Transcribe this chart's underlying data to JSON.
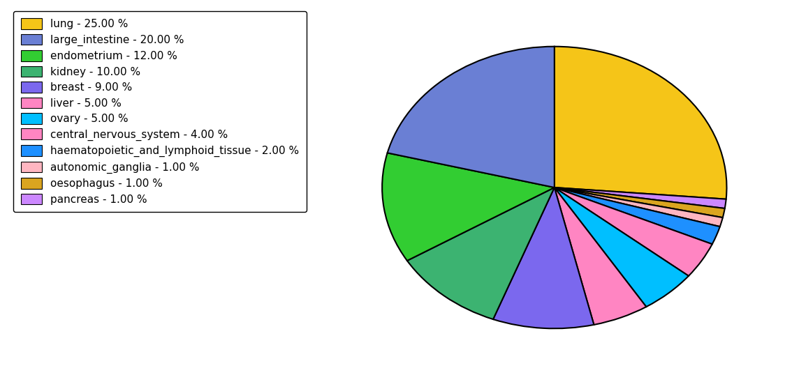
{
  "labels": [
    "lung",
    "pancreas",
    "oesophagus",
    "autonomic_ganglia",
    "haematopoietic_and_lymphoid_tissue",
    "central_nervous_system",
    "ovary",
    "liver",
    "breast",
    "kidney",
    "endometrium",
    "large_intestine"
  ],
  "values": [
    25,
    1,
    1,
    1,
    2,
    4,
    5,
    5,
    9,
    10,
    12,
    20
  ],
  "colors": [
    "#F5C518",
    "#CC88FF",
    "#DAA520",
    "#FFB6C1",
    "#1E90FF",
    "#FF85C2",
    "#00BFFF",
    "#FF85C2",
    "#7B68EE",
    "#3CB371",
    "#32CD32",
    "#6A7FD4"
  ],
  "legend_labels": [
    "lung - 25.00 %",
    "large_intestine - 20.00 %",
    "endometrium - 12.00 %",
    "kidney - 10.00 %",
    "breast - 9.00 %",
    "liver - 5.00 %",
    "ovary - 5.00 %",
    "central_nervous_system - 4.00 %",
    "haematopoietic_and_lymphoid_tissue - 2.00 %",
    "autonomic_ganglia - 1.00 %",
    "oesophagus - 1.00 %",
    "pancreas - 1.00 %"
  ],
  "legend_colors": [
    "#F5C518",
    "#6A7FD4",
    "#32CD32",
    "#3CB371",
    "#7B68EE",
    "#FF85C2",
    "#00BFFF",
    "#FF85C2",
    "#1E90FF",
    "#FFB6C1",
    "#DAA520",
    "#CC88FF"
  ],
  "startangle": 90,
  "figsize": [
    11.34,
    5.38
  ],
  "dpi": 100,
  "background_color": "#ffffff"
}
